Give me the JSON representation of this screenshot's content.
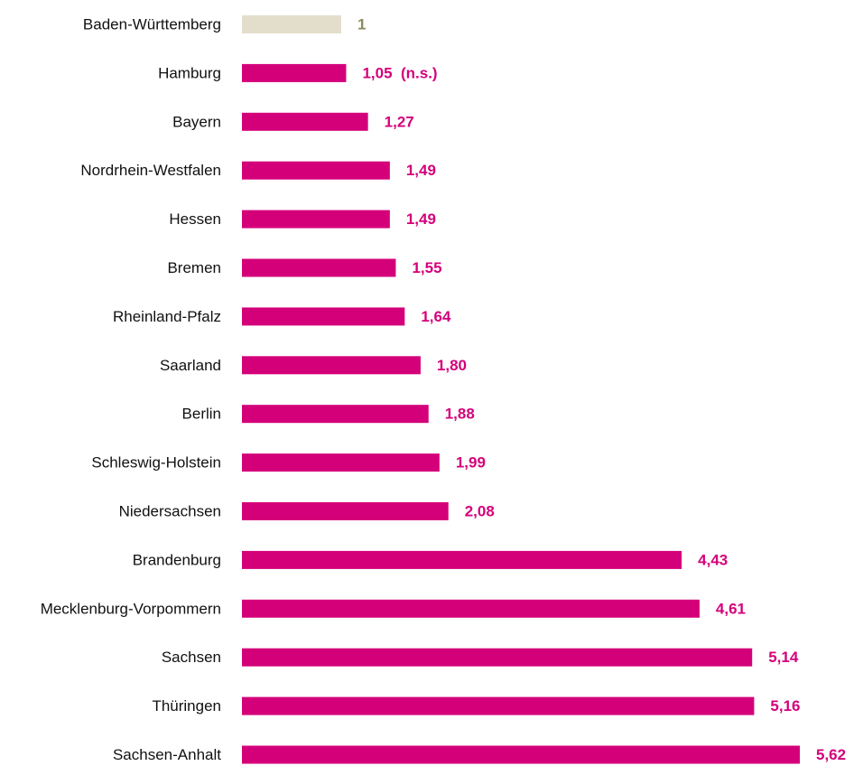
{
  "chart_data": {
    "type": "hbar",
    "categories": [
      "Baden-Württemberg",
      "Hamburg",
      "Bayern",
      "Nordrhein-Westfalen",
      "Hessen",
      "Bremen",
      "Rheinland-Pfalz",
      "Saarland",
      "Berlin",
      "Schleswig-Holstein",
      "Niedersachsen",
      "Brandenburg",
      "Mecklenburg-Vorpommern",
      "Sachsen",
      "Thüringen",
      "Sachsen-Anhalt"
    ],
    "values": [
      1,
      1.05,
      1.27,
      1.49,
      1.49,
      1.55,
      1.64,
      1.8,
      1.88,
      1.99,
      2.08,
      4.43,
      4.61,
      5.14,
      5.16,
      5.62
    ],
    "value_labels": [
      "1",
      "1,05  (n.s.)",
      "1,27",
      "1,49",
      "1,49",
      "1,55",
      "1,64",
      "1,80",
      "1,88",
      "1,99",
      "2,08",
      "4,43",
      "4,61",
      "5,14",
      "5,16",
      "5,62"
    ],
    "colors": [
      "#e2decb",
      "#d4007a",
      "#d4007a",
      "#d4007a",
      "#d4007a",
      "#d4007a",
      "#d4007a",
      "#d4007a",
      "#d4007a",
      "#d4007a",
      "#d4007a",
      "#d4007a",
      "#d4007a",
      "#d4007a",
      "#d4007a",
      "#d4007a"
    ],
    "label_colors": [
      "#8b8a5c",
      "#d4007a",
      "#d4007a",
      "#d4007a",
      "#d4007a",
      "#d4007a",
      "#d4007a",
      "#d4007a",
      "#d4007a",
      "#d4007a",
      "#d4007a",
      "#d4007a",
      "#d4007a",
      "#d4007a",
      "#d4007a",
      "#d4007a"
    ]
  }
}
